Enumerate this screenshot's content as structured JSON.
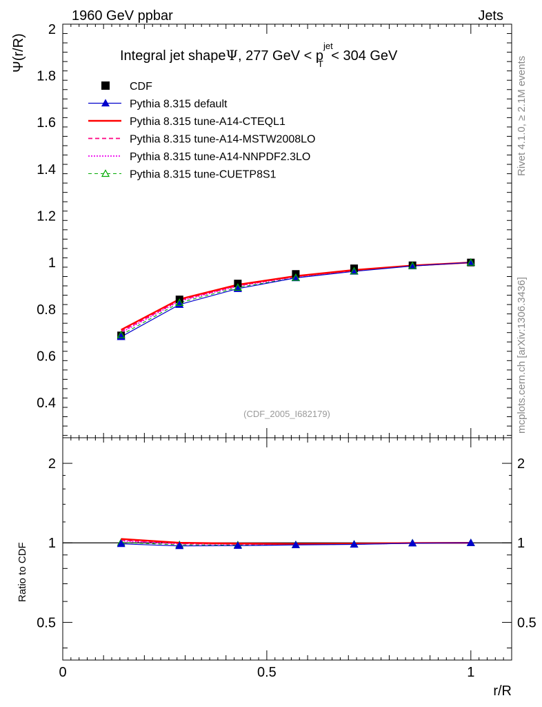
{
  "header": {
    "left": "1960 GeV ppbar",
    "right": "Jets"
  },
  "side_labels": {
    "rivet": "Rivet 4.1.0, ≥ 2.1M events",
    "mcplots": "mcplots.cern.ch [arXiv:1306.3436]"
  },
  "watermark": "(CDF_2005_I682179)",
  "chart_data": {
    "type": "line",
    "title_main": "Integral jet shape",
    "title_psi": "Ψ",
    "title_range_a": ", 277 GeV < p",
    "title_sup": "jet",
    "title_sub": "T",
    "title_range_b": " < 304 GeV",
    "ylabel": "Ψ(r/R)",
    "ratio_ylabel": "Ratio to CDF",
    "xlabel": "r/R",
    "xlim": [
      0,
      1.1
    ],
    "ylim": [
      0.25,
      2.02
    ],
    "ratio_ylim": [
      0.36,
      2.5
    ],
    "x_ticks": [
      "0",
      "0.5",
      "1"
    ],
    "y_ticks": [
      "0.4",
      "0.6",
      "0.8",
      "1",
      "1.2",
      "1.4",
      "1.6",
      "1.8",
      "2"
    ],
    "ratio_ticks": [
      "0.5",
      "1",
      "2"
    ],
    "x": [
      0.143,
      0.286,
      0.429,
      0.571,
      0.714,
      0.857,
      1.0
    ],
    "data": {
      "name": "CDF",
      "values": [
        0.688,
        0.842,
        0.91,
        0.951,
        0.975,
        0.988,
        1.0
      ]
    },
    "series": [
      {
        "name": "Pythia 8.315 default",
        "color": "#0000cc",
        "style": "solid",
        "marker": "triangle-filled",
        "values": [
          0.682,
          0.82,
          0.888,
          0.934,
          0.962,
          0.985,
          1.0
        ]
      },
      {
        "name": "Pythia 8.315 tune-A14-CTEQL1",
        "color": "#ff0000",
        "style": "solid-thick",
        "marker": "none",
        "values": [
          0.712,
          0.843,
          0.905,
          0.942,
          0.968,
          0.987,
          1.0
        ]
      },
      {
        "name": "Pythia 8.315 tune-A14-MSTW2008LO",
        "color": "#ff0080",
        "style": "dashed",
        "marker": "none",
        "values": [
          0.705,
          0.838,
          0.901,
          0.94,
          0.966,
          0.986,
          1.0
        ]
      },
      {
        "name": "Pythia 8.315 tune-A14-NNPDF2.3LO",
        "color": "#ee00ee",
        "style": "dotted",
        "marker": "none",
        "values": [
          0.7,
          0.835,
          0.899,
          0.939,
          0.965,
          0.986,
          1.0
        ]
      },
      {
        "name": "Pythia 8.315 tune-CUETP8S1",
        "color": "#00aa00",
        "style": "dashed-thin",
        "marker": "triangle-open",
        "values": [
          0.69,
          0.828,
          0.893,
          0.935,
          0.963,
          0.986,
          1.0
        ]
      }
    ]
  }
}
